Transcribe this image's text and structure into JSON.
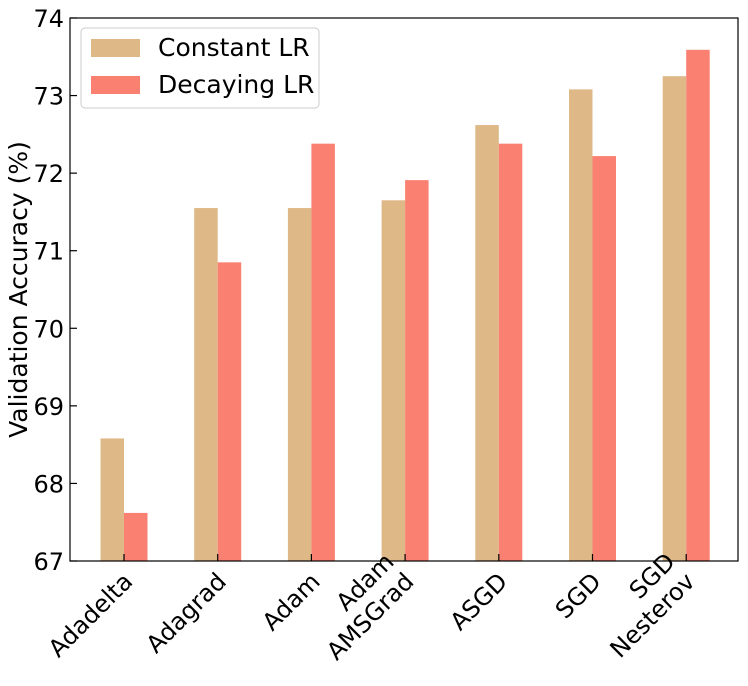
{
  "chart_data": {
    "type": "bar",
    "title": "",
    "xlabel": "",
    "ylabel": "Validation Accuracy (%)",
    "ylim": [
      67,
      74
    ],
    "yticks": [
      67,
      68,
      69,
      70,
      71,
      72,
      73,
      74
    ],
    "grid": false,
    "legend_position": "top-left",
    "categories": [
      [
        "Adadelta"
      ],
      [
        "Adagrad"
      ],
      [
        "Adam"
      ],
      [
        "Adam",
        "AMSGrad"
      ],
      [
        "ASGD"
      ],
      [
        "SGD"
      ],
      [
        "SGD",
        "Nesterov"
      ]
    ],
    "series": [
      {
        "name": "Constant LR",
        "color": "#deb887",
        "values": [
          68.58,
          71.55,
          71.55,
          71.65,
          72.62,
          73.08,
          73.25
        ]
      },
      {
        "name": "Decaying LR",
        "color": "#fa8072",
        "values": [
          67.62,
          70.85,
          72.38,
          71.91,
          72.38,
          72.22,
          73.59
        ]
      }
    ]
  }
}
